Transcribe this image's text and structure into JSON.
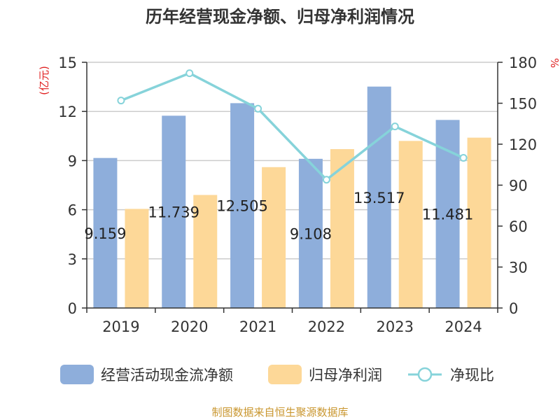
{
  "chart_data": {
    "type": "bar",
    "title": "历年经营现金净额、归母净利润情况",
    "categories": [
      "2019",
      "2020",
      "2021",
      "2022",
      "2023",
      "2024"
    ],
    "series": [
      {
        "name": "经营活动现金流净额",
        "axis": "left",
        "kind": "bar",
        "color": "#8eaedb",
        "values": [
          9.159,
          11.739,
          12.505,
          9.108,
          13.517,
          11.481
        ],
        "labels": [
          "9.159",
          "11.739",
          "12.505",
          "9.108",
          "13.517",
          "11.481"
        ]
      },
      {
        "name": "归母净利润",
        "axis": "left",
        "kind": "bar",
        "color": "#fdd898",
        "values": [
          6.05,
          6.9,
          8.6,
          9.7,
          10.2,
          10.4
        ]
      },
      {
        "name": "净现比",
        "axis": "right",
        "kind": "line",
        "color": "#86d3da",
        "values": [
          152,
          172,
          146,
          94,
          133,
          110
        ]
      }
    ],
    "y_left": {
      "label": "(亿元)",
      "ylim": [
        0,
        15
      ],
      "ticks": [
        "0",
        "3",
        "6",
        "9",
        "12",
        "15"
      ]
    },
    "y_right": {
      "label": "%",
      "ylim": [
        0,
        180
      ],
      "ticks": [
        "0",
        "30",
        "60",
        "90",
        "120",
        "150",
        "180"
      ]
    },
    "grid": true,
    "legend_position": "bottom",
    "source": "制图数据来自恒生聚源数据库"
  }
}
